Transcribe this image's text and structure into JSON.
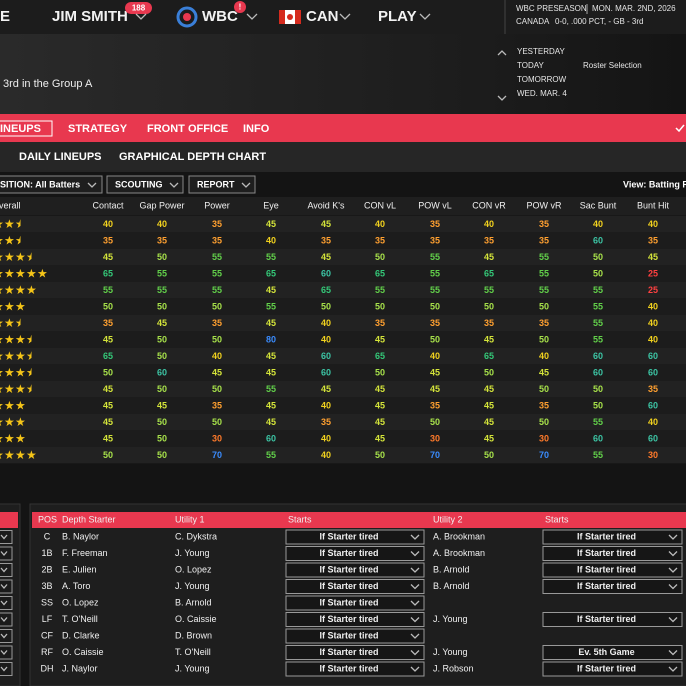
{
  "nav": {
    "partial": "E",
    "manager": "JIM SMITH",
    "manager_badge": "188",
    "league": "WBC",
    "league_badge": "!",
    "team": "CAN",
    "play": "PLAY"
  },
  "status": {
    "phase": "WBC PRESEASON",
    "date": "MON. MAR. 2ND, 2026",
    "team": "CANADA",
    "record": "0-0, .000 PCT, - GB - 3rd"
  },
  "header": {
    "standing": "3rd in the Group A"
  },
  "calendar": [
    {
      "day": "YESTERDAY"
    },
    {
      "day": "TODAY",
      "event": "Roster Selection"
    },
    {
      "day": "TOMORROW"
    },
    {
      "day": "WED. MAR. 4"
    }
  ],
  "tabs": [
    "INEUPS",
    "STRATEGY",
    "FRONT OFFICE",
    "INFO"
  ],
  "subtabs": [
    "DAILY LINEUPS",
    "GRAPHICAL DEPTH CHART"
  ],
  "filters": {
    "position": "SITION: All Batters",
    "scouting": "SCOUTING",
    "report": "REPORT",
    "view": "View: Batting R"
  },
  "ratings_table": {
    "overall_header": "verall",
    "columns": [
      "Contact",
      "Gap Power",
      "Power",
      "Eye",
      "Avoid K's",
      "CON vL",
      "POW vL",
      "CON vR",
      "POW vR",
      "Sac Bunt",
      "Bunt Hit"
    ],
    "stars": [
      2.5,
      2.5,
      3.5,
      5,
      4,
      3,
      2.5,
      3.5,
      3.5,
      3.5,
      3.5,
      3,
      3,
      3,
      4
    ],
    "rows": [
      [
        40,
        40,
        35,
        45,
        45,
        40,
        35,
        40,
        35,
        40,
        40
      ],
      [
        35,
        35,
        35,
        40,
        35,
        35,
        35,
        35,
        35,
        60,
        35
      ],
      [
        45,
        50,
        55,
        55,
        45,
        50,
        55,
        45,
        55,
        50,
        45
      ],
      [
        65,
        55,
        55,
        65,
        60,
        65,
        55,
        65,
        55,
        50,
        25
      ],
      [
        55,
        55,
        55,
        45,
        65,
        55,
        55,
        55,
        55,
        55,
        25
      ],
      [
        50,
        50,
        50,
        55,
        50,
        50,
        50,
        50,
        50,
        55,
        40
      ],
      [
        35,
        45,
        35,
        45,
        40,
        35,
        35,
        35,
        35,
        55,
        40
      ],
      [
        45,
        50,
        50,
        80,
        40,
        45,
        50,
        45,
        50,
        55,
        40
      ],
      [
        65,
        50,
        40,
        45,
        60,
        65,
        40,
        65,
        40,
        60,
        60
      ],
      [
        50,
        60,
        45,
        45,
        60,
        50,
        45,
        50,
        45,
        60,
        60
      ],
      [
        45,
        50,
        50,
        55,
        45,
        45,
        45,
        45,
        50,
        50,
        35
      ],
      [
        45,
        45,
        35,
        45,
        40,
        45,
        35,
        45,
        35,
        50,
        60
      ],
      [
        45,
        50,
        50,
        45,
        35,
        45,
        50,
        45,
        50,
        55,
        40
      ],
      [
        45,
        50,
        30,
        60,
        40,
        45,
        30,
        45,
        30,
        60,
        60
      ],
      [
        50,
        50,
        70,
        55,
        40,
        50,
        70,
        50,
        70,
        55,
        30
      ]
    ]
  },
  "depth_chart": {
    "columns": [
      "POS",
      "Depth Starter",
      "Utility 1",
      "Starts",
      "Utility 2",
      "Starts"
    ],
    "rows": [
      [
        "C",
        "B. Naylor",
        "C. Dykstra",
        "If Starter tired",
        "A. Brookman",
        "If Starter tired"
      ],
      [
        "1B",
        "F. Freeman",
        "J. Young",
        "If Starter tired",
        "A. Brookman",
        "If Starter tired"
      ],
      [
        "2B",
        "E. Julien",
        "O. Lopez",
        "If Starter tired",
        "B. Arnold",
        "If Starter tired"
      ],
      [
        "3B",
        "A. Toro",
        "J. Young",
        "If Starter tired",
        "B. Arnold",
        "If Starter tired"
      ],
      [
        "SS",
        "O. Lopez",
        "B. Arnold",
        "If Starter tired",
        null,
        null
      ],
      [
        "LF",
        "T. O'Neill",
        "O. Caissie",
        "If Starter tired",
        "J. Young",
        "If Starter tired"
      ],
      [
        "CF",
        "D. Clarke",
        "D. Brown",
        "If Starter tired",
        null,
        null
      ],
      [
        "RF",
        "O. Caissie",
        "T. O'Neill",
        "If Starter tired",
        "J. Young",
        "Ev. 5th Game"
      ],
      [
        "DH",
        "J. Naylor",
        "J. Young",
        "If Starter tired",
        "J. Robson",
        "If Starter tired"
      ]
    ]
  }
}
